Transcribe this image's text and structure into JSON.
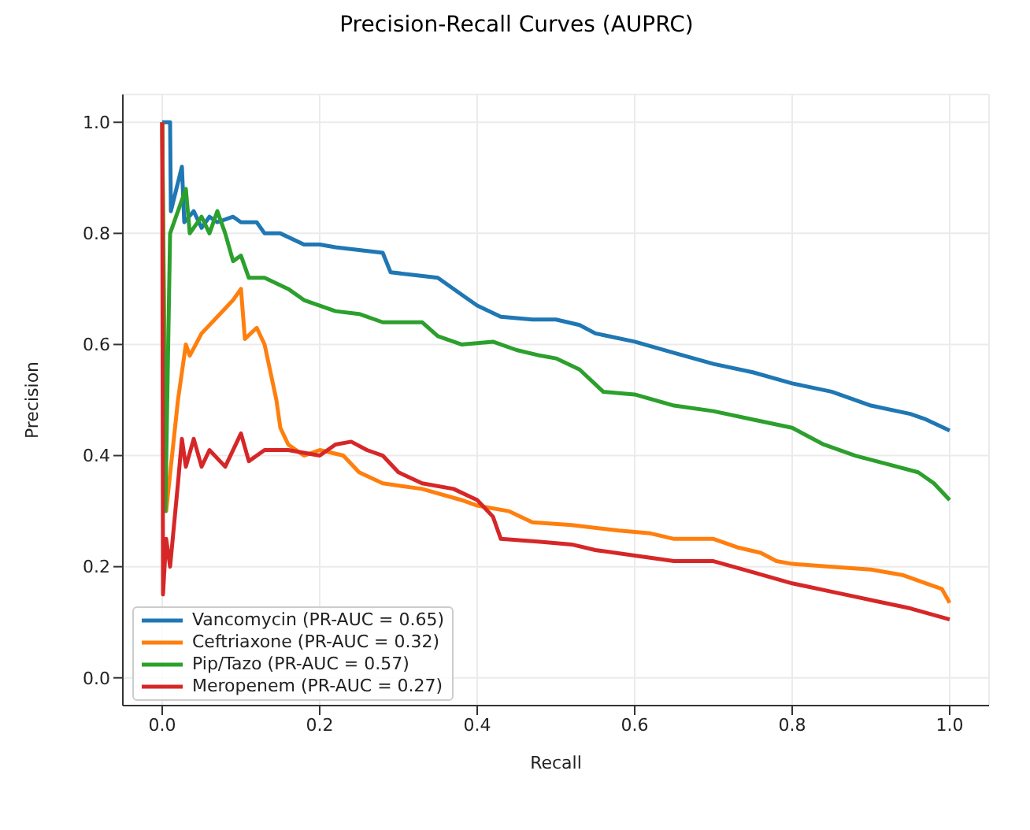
{
  "chart_data": {
    "type": "line",
    "title": "Precision-Recall Curves (AUPRC)",
    "xlabel": "Recall",
    "ylabel": "Precision",
    "xlim": [
      -0.05,
      1.05
    ],
    "ylim": [
      -0.05,
      1.05
    ],
    "xticks": [
      {
        "value": 0,
        "label": "0.0"
      },
      0.2,
      0.4,
      0.6,
      0.8,
      {
        "value": 1,
        "label": "1.0"
      }
    ],
    "yticks": [
      {
        "value": 0,
        "label": "0.0"
      },
      0.2,
      0.4,
      0.6,
      0.8,
      {
        "value": 1,
        "label": "1.0"
      }
    ],
    "grid": true,
    "legend": "bottom left",
    "marker": "none",
    "line_style": "solid",
    "series": [
      {
        "name": "Vancomycin (PR-AUC = 0.65)",
        "color": "#1f77b4",
        "x": [
          0,
          0.01,
          0.011,
          0.025,
          0.028,
          0.04,
          0.05,
          0.06,
          0.07,
          0.09,
          0.1,
          0.12,
          0.13,
          0.15,
          0.18,
          0.2,
          0.22,
          0.25,
          0.28,
          0.29,
          0.32,
          0.35,
          0.38,
          0.4,
          0.43,
          0.47,
          0.5,
          0.53,
          0.55,
          0.6,
          0.65,
          0.7,
          0.75,
          0.8,
          0.85,
          0.9,
          0.95,
          0.97,
          1.0
        ],
        "values": [
          1.0,
          1.0,
          0.84,
          0.92,
          0.82,
          0.84,
          0.81,
          0.83,
          0.82,
          0.83,
          0.82,
          0.82,
          0.8,
          0.8,
          0.78,
          0.78,
          0.775,
          0.77,
          0.765,
          0.73,
          0.725,
          0.72,
          0.69,
          0.67,
          0.65,
          0.645,
          0.645,
          0.635,
          0.62,
          0.605,
          0.585,
          0.565,
          0.55,
          0.53,
          0.515,
          0.49,
          0.475,
          0.465,
          0.445
        ]
      },
      {
        "name": "Ceftriaxone (PR-AUC = 0.32)",
        "color": "#ff7f0e",
        "x": [
          0,
          0.005,
          0.02,
          0.03,
          0.035,
          0.05,
          0.07,
          0.09,
          0.1,
          0.105,
          0.12,
          0.13,
          0.145,
          0.15,
          0.16,
          0.18,
          0.2,
          0.23,
          0.25,
          0.28,
          0.33,
          0.38,
          0.4,
          0.44,
          0.47,
          0.52,
          0.58,
          0.62,
          0.65,
          0.7,
          0.73,
          0.76,
          0.78,
          0.8,
          0.85,
          0.9,
          0.94,
          0.97,
          0.99,
          1.0
        ],
        "values": [
          1.0,
          0.3,
          0.5,
          0.6,
          0.58,
          0.62,
          0.65,
          0.68,
          0.7,
          0.61,
          0.63,
          0.6,
          0.5,
          0.45,
          0.42,
          0.4,
          0.41,
          0.4,
          0.37,
          0.35,
          0.34,
          0.32,
          0.31,
          0.3,
          0.28,
          0.275,
          0.265,
          0.26,
          0.25,
          0.25,
          0.235,
          0.225,
          0.21,
          0.205,
          0.2,
          0.195,
          0.185,
          0.17,
          0.16,
          0.135
        ]
      },
      {
        "name": "Pip/Tazo (PR-AUC = 0.57)",
        "color": "#2ca02c",
        "x": [
          0,
          0.004,
          0.01,
          0.03,
          0.035,
          0.05,
          0.06,
          0.07,
          0.08,
          0.09,
          0.1,
          0.11,
          0.13,
          0.16,
          0.18,
          0.22,
          0.25,
          0.28,
          0.3,
          0.33,
          0.35,
          0.38,
          0.42,
          0.45,
          0.48,
          0.5,
          0.53,
          0.56,
          0.6,
          0.65,
          0.7,
          0.75,
          0.8,
          0.84,
          0.88,
          0.92,
          0.96,
          0.98,
          1.0
        ],
        "values": [
          1.0,
          0.3,
          0.8,
          0.88,
          0.8,
          0.83,
          0.8,
          0.84,
          0.8,
          0.75,
          0.76,
          0.72,
          0.72,
          0.7,
          0.68,
          0.66,
          0.655,
          0.64,
          0.64,
          0.64,
          0.615,
          0.6,
          0.605,
          0.59,
          0.58,
          0.575,
          0.555,
          0.515,
          0.51,
          0.49,
          0.48,
          0.465,
          0.45,
          0.42,
          0.4,
          0.385,
          0.37,
          0.35,
          0.32
        ]
      },
      {
        "name": "Meropenem (PR-AUC = 0.27)",
        "color": "#d62728",
        "x": [
          0,
          0.001,
          0.005,
          0.01,
          0.02,
          0.025,
          0.03,
          0.04,
          0.05,
          0.06,
          0.08,
          0.1,
          0.11,
          0.13,
          0.16,
          0.2,
          0.22,
          0.24,
          0.26,
          0.28,
          0.3,
          0.33,
          0.37,
          0.4,
          0.42,
          0.43,
          0.48,
          0.52,
          0.55,
          0.6,
          0.65,
          0.7,
          0.75,
          0.8,
          0.85,
          0.9,
          0.95,
          1.0
        ],
        "values": [
          1.0,
          0.15,
          0.25,
          0.2,
          0.35,
          0.43,
          0.38,
          0.43,
          0.38,
          0.41,
          0.38,
          0.44,
          0.39,
          0.41,
          0.41,
          0.4,
          0.42,
          0.425,
          0.41,
          0.4,
          0.37,
          0.35,
          0.34,
          0.32,
          0.29,
          0.25,
          0.245,
          0.24,
          0.23,
          0.22,
          0.21,
          0.21,
          0.19,
          0.17,
          0.155,
          0.14,
          0.125,
          0.105
        ]
      }
    ]
  }
}
